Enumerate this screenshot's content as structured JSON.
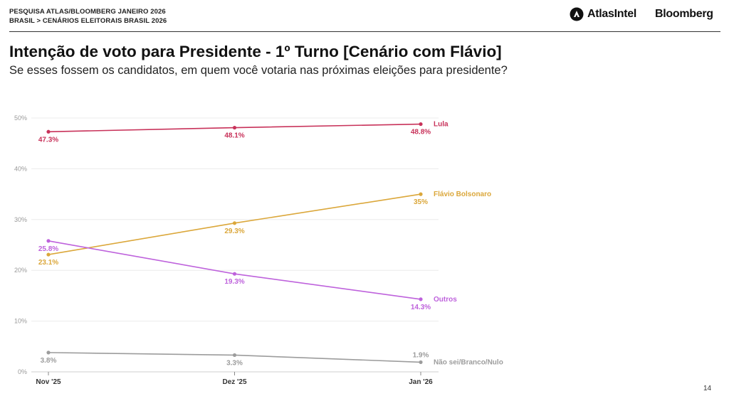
{
  "header": {
    "line1": "PESQUISA ATLAS/BLOOMBERG JANEIRO 2026",
    "line2": "BRASIL > CENÁRIOS ELEITORAIS BRASIL 2026",
    "brand_atlas": "AtlasIntel",
    "brand_bloomberg": "Bloomberg"
  },
  "title": "Intenção de voto para Presidente - 1º Turno [Cenário com Flávio]",
  "subtitle": "Se esses fossem os candidatos, em quem você votaria nas próximas eleições para presidente?",
  "page_number": "14",
  "colors": {
    "lula": "#c8325a",
    "flavio": "#dba73a",
    "outros": "#be62dc",
    "nao_sei": "#9c9c9c"
  },
  "chart_data": {
    "type": "line",
    "categories": [
      "Nov '25",
      "Dez '25",
      "Jan '26"
    ],
    "yticks": [
      "0%",
      "10%",
      "20%",
      "30%",
      "40%",
      "50%"
    ],
    "ylim": [
      0,
      50
    ],
    "grid": true,
    "series": [
      {
        "key": "lula",
        "name": "Lula",
        "values": [
          47.3,
          48.1,
          48.8
        ],
        "labels": [
          "47.3%",
          "48.1%",
          "48.8%"
        ]
      },
      {
        "key": "flavio",
        "name": "Flávio Bolsonaro",
        "values": [
          23.1,
          29.3,
          35
        ],
        "labels": [
          "23.1%",
          "29.3%",
          "35%"
        ]
      },
      {
        "key": "outros",
        "name": "Outros",
        "values": [
          25.8,
          19.3,
          14.3
        ],
        "labels": [
          "25.8%",
          "19.3%",
          "14.3%"
        ]
      },
      {
        "key": "nao_sei",
        "name": "Não sei/Branco/Nulo",
        "values": [
          3.8,
          3.3,
          1.9
        ],
        "labels": [
          "3.8%",
          "3.3%",
          "1.9%"
        ]
      }
    ]
  }
}
